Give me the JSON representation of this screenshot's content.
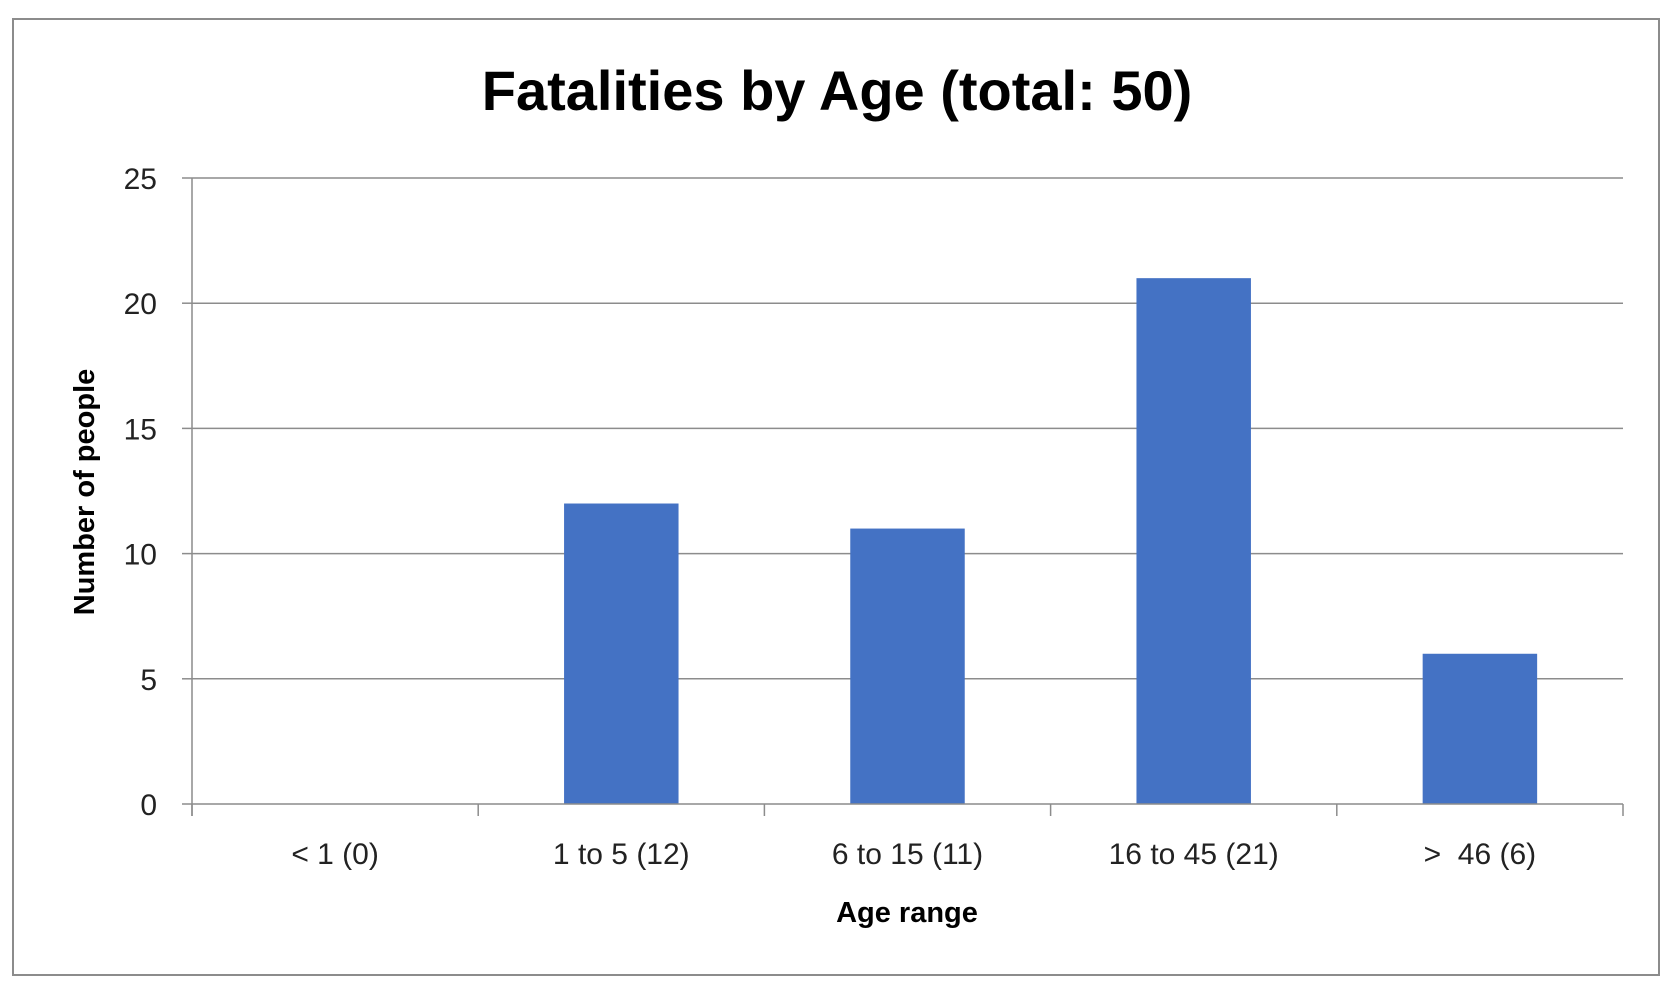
{
  "chart_data": {
    "type": "bar",
    "title": "Fatalities by Age (total: 50)",
    "xlabel": "Age range",
    "ylabel": "Number of people",
    "categories": [
      "< 1 (0)",
      "1 to 5 (12)",
      "6 to 15 (11)",
      "16 to 45 (21)",
      ">  46 (6)"
    ],
    "values": [
      0,
      12,
      11,
      21,
      6
    ],
    "ylim": [
      0,
      25
    ],
    "yticks": [
      0,
      5,
      10,
      15,
      20,
      25
    ],
    "grid": true,
    "legend": "none",
    "colors": {
      "bar": "#4472C4",
      "grid": "#8c8c8c",
      "axis": "#8c8c8c",
      "text": "#000000",
      "frame": "#8c8c8c"
    }
  }
}
